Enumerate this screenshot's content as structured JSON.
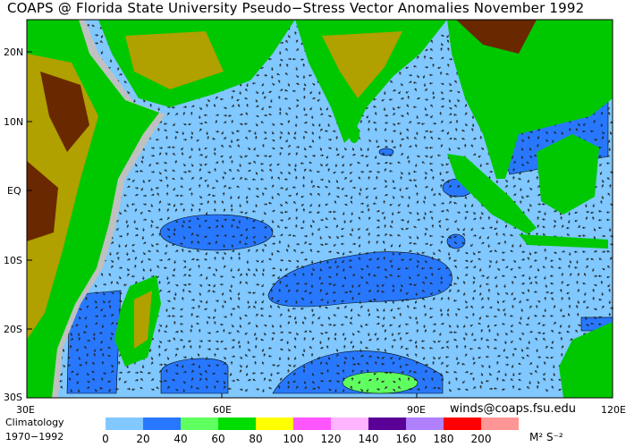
{
  "title": "COAPS @ Florida State University Pseudo−Stress Vector Anomalies  November 1992",
  "map": {
    "lat_labels": [
      "20N",
      "10N",
      "EQ",
      "10S",
      "20S",
      "30S"
    ],
    "lon_labels": [
      "30E",
      "60E",
      "90E",
      "120E"
    ],
    "colors": {
      "ocean": "#80c8ff",
      "anomaly": "#2878ff",
      "strong": "#60ff60",
      "land_gray": "#c0c0c0",
      "land_low": "#00c800",
      "land_mid": "#b0a000",
      "land_high": "#6a2800"
    }
  },
  "credit": "winds@coaps.fsu.edu",
  "climatology": {
    "line1": "Climatology",
    "line2": "1970−1992"
  },
  "legend": {
    "colors": [
      "#80c8ff",
      "#2878ff",
      "#60ff60",
      "#00dd00",
      "#ffff00",
      "#ff55ff",
      "#ffb4ff",
      "#5a0096",
      "#b080ff",
      "#ff0000",
      "#ff9696"
    ],
    "ticks": [
      "0",
      "20",
      "40",
      "60",
      "80",
      "100",
      "120",
      "140",
      "160",
      "180",
      "200"
    ],
    "units": "M² S⁻²"
  }
}
